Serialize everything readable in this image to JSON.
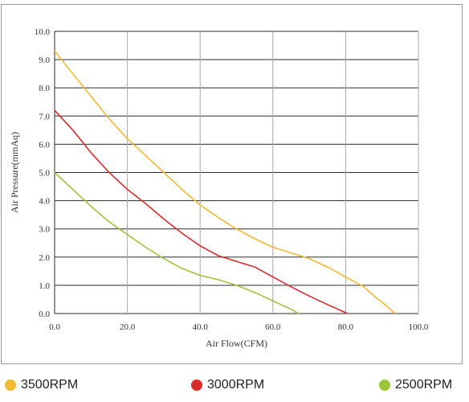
{
  "chart_data": {
    "type": "line",
    "title": "",
    "xlabel": "Air Flow(CFM)",
    "ylabel": "Air Pressure(mmAq)",
    "xlim": [
      0,
      100
    ],
    "ylim": [
      0,
      10
    ],
    "grid": true,
    "legend_position": "bottom",
    "x_ticks": [
      "0.0",
      "20.0",
      "40.0",
      "60.0",
      "80.0",
      "100.0"
    ],
    "y_ticks": [
      "0.0",
      "1.0",
      "2.0",
      "3.0",
      "4.0",
      "5.0",
      "6.0",
      "7.0",
      "8.0",
      "9.0",
      "10.0"
    ],
    "series": [
      {
        "name": "3500RPM",
        "color": "#f2b935",
        "points": [
          [
            0,
            9.3
          ],
          [
            5,
            8.5
          ],
          [
            10,
            7.7
          ],
          [
            15,
            6.9
          ],
          [
            20,
            6.2
          ],
          [
            25,
            5.6
          ],
          [
            30,
            5.0
          ],
          [
            35,
            4.4
          ],
          [
            40,
            3.85
          ],
          [
            45,
            3.4
          ],
          [
            50,
            3.0
          ],
          [
            55,
            2.65
          ],
          [
            60,
            2.35
          ],
          [
            65,
            2.15
          ],
          [
            70,
            1.95
          ],
          [
            75,
            1.65
          ],
          [
            80,
            1.3
          ],
          [
            85,
            0.95
          ],
          [
            88,
            0.6
          ],
          [
            91,
            0.3
          ],
          [
            93.5,
            0.0
          ]
        ]
      },
      {
        "name": "3000RPM",
        "color": "#d92b2b",
        "points": [
          [
            0,
            7.2
          ],
          [
            5,
            6.5
          ],
          [
            10,
            5.7
          ],
          [
            15,
            5.0
          ],
          [
            20,
            4.4
          ],
          [
            25,
            3.9
          ],
          [
            30,
            3.35
          ],
          [
            35,
            2.85
          ],
          [
            40,
            2.4
          ],
          [
            45,
            2.05
          ],
          [
            50,
            1.85
          ],
          [
            55,
            1.65
          ],
          [
            60,
            1.3
          ],
          [
            65,
            0.95
          ],
          [
            70,
            0.62
          ],
          [
            75,
            0.32
          ],
          [
            80.5,
            0.0
          ]
        ]
      },
      {
        "name": "2500RPM",
        "color": "#9bc53d",
        "points": [
          [
            0,
            5.0
          ],
          [
            5,
            4.4
          ],
          [
            10,
            3.8
          ],
          [
            15,
            3.25
          ],
          [
            20,
            2.8
          ],
          [
            25,
            2.35
          ],
          [
            30,
            1.95
          ],
          [
            35,
            1.6
          ],
          [
            40,
            1.35
          ],
          [
            45,
            1.2
          ],
          [
            50,
            1.0
          ],
          [
            55,
            0.75
          ],
          [
            60,
            0.45
          ],
          [
            65,
            0.15
          ],
          [
            67,
            0.0
          ]
        ]
      }
    ]
  }
}
